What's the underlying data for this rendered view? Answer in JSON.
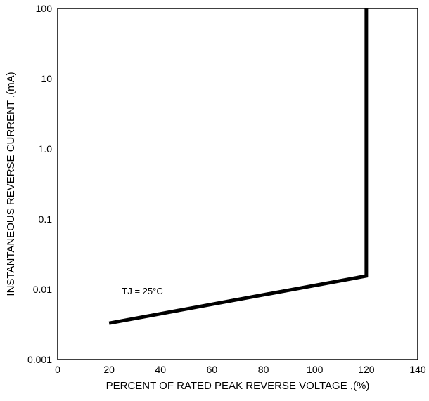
{
  "chart_data": {
    "type": "line",
    "xlabel": "PERCENT OF RATED PEAK REVERSE VOLTAGE ,(%)",
    "ylabel": "INSTANTANEOUS REVERSE CURRENT ,(mA)",
    "xlim": [
      0,
      140
    ],
    "ylim": [
      0.001,
      100
    ],
    "y_scale": "log",
    "grid": true,
    "x_ticks": [
      0,
      20,
      40,
      60,
      80,
      100,
      120,
      140
    ],
    "x_tick_labels": [
      "0",
      "20",
      "40",
      "60",
      "80",
      "100",
      "120",
      "140"
    ],
    "y_ticks": [
      0.001,
      0.01,
      0.1,
      1,
      10,
      100
    ],
    "y_tick_labels": [
      "0.001",
      "0.01",
      "0.1",
      "1.0",
      "10",
      "100"
    ],
    "series": [
      {
        "x": [
          20,
          120,
          120
        ],
        "y": [
          0.0033,
          0.0155,
          100
        ]
      }
    ],
    "annotations": [
      {
        "text": "TJ = 25°C",
        "x": 25,
        "y": 0.0095
      }
    ]
  }
}
